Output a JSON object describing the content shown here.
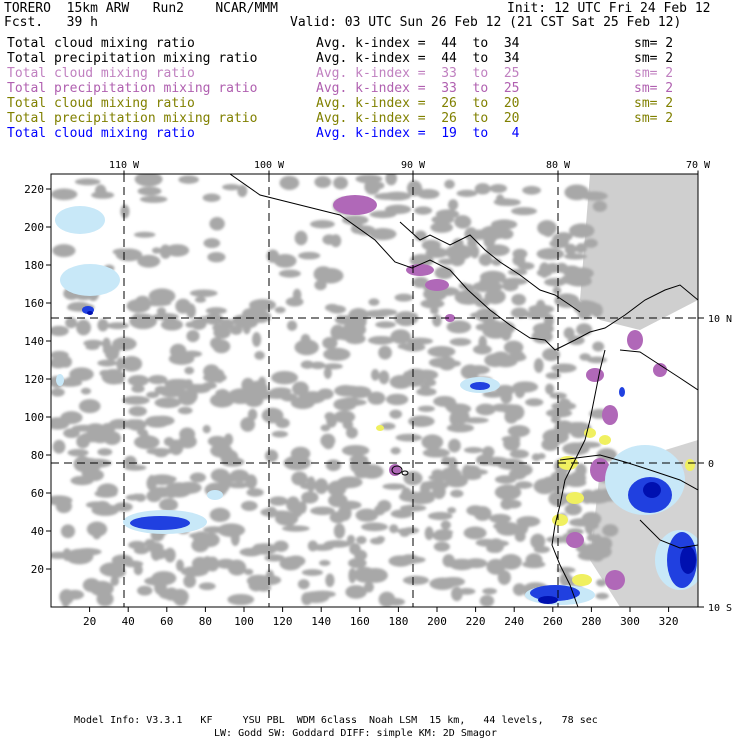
{
  "header": {
    "model": "TORERO  15km ARW   Run2    NCAR/MMM",
    "init": "Init: 12 UTC Fri 24 Feb 12",
    "fcst": "Fcst.   39 h",
    "valid": "Valid: 03 UTC Sun 26 Feb 12 (21 CST Sat 25 Feb 12)"
  },
  "legend": [
    {
      "field": "Total cloud mixing ratio",
      "index": "Avg. k-index =  44  to  34",
      "sm": "sm= 2",
      "color": "#000000"
    },
    {
      "field": "Total precipitation mixing ratio",
      "index": "Avg. k-index =  44  to  34",
      "sm": "sm= 2",
      "color": "#000000"
    },
    {
      "field": "Total cloud mixing ratio",
      "index": "Avg. k-index =  33  to  25",
      "sm": "sm= 2",
      "color": "#c080c0"
    },
    {
      "field": "Total precipitation mixing ratio",
      "index": "Avg. k-index =  33  to  25",
      "sm": "sm= 2",
      "color": "#b060b0"
    },
    {
      "field": "Total cloud mixing ratio",
      "index": "Avg. k-index =  26  to  20",
      "sm": "sm= 2",
      "color": "#808000"
    },
    {
      "field": "Total precipitation mixing ratio",
      "index": "Avg. k-index =  26  to  20",
      "sm": "sm= 2",
      "color": "#808000"
    },
    {
      "field": "Total cloud mixing ratio",
      "index": "Avg. k-index =  19  to   4",
      "sm": "",
      "color": "#0000ff"
    }
  ],
  "map": {
    "lon_labels": [
      "110 W",
      "100 W",
      "90 W",
      "80 W",
      "70 W"
    ],
    "lat_labels": [
      "10 N",
      "0",
      "10 S"
    ],
    "y_ticks": [
      "220",
      "200",
      "180",
      "160",
      "140",
      "120",
      "100",
      "80",
      "60",
      "40",
      "20"
    ],
    "x_ticks": [
      "20",
      "40",
      "60",
      "80",
      "100",
      "120",
      "140",
      "160",
      "180",
      "200",
      "220",
      "240",
      "260",
      "280",
      "300",
      "320"
    ],
    "colors": {
      "gray": "#a8a8a8",
      "purple": "#b068b8",
      "yellow": "#f0f060",
      "light_blue": "#c8e8f8",
      "blue": "#2040e0",
      "dark_blue": "#0010b0"
    }
  },
  "footer": {
    "line1": "Model Info: V3.3.1   KF     YSU PBL  WDM 6class  Noah LSM  15 km,   44 levels,   78 sec",
    "line2": "LW: Godd SW: Goddard DIFF: simple KM: 2D Smagor"
  }
}
